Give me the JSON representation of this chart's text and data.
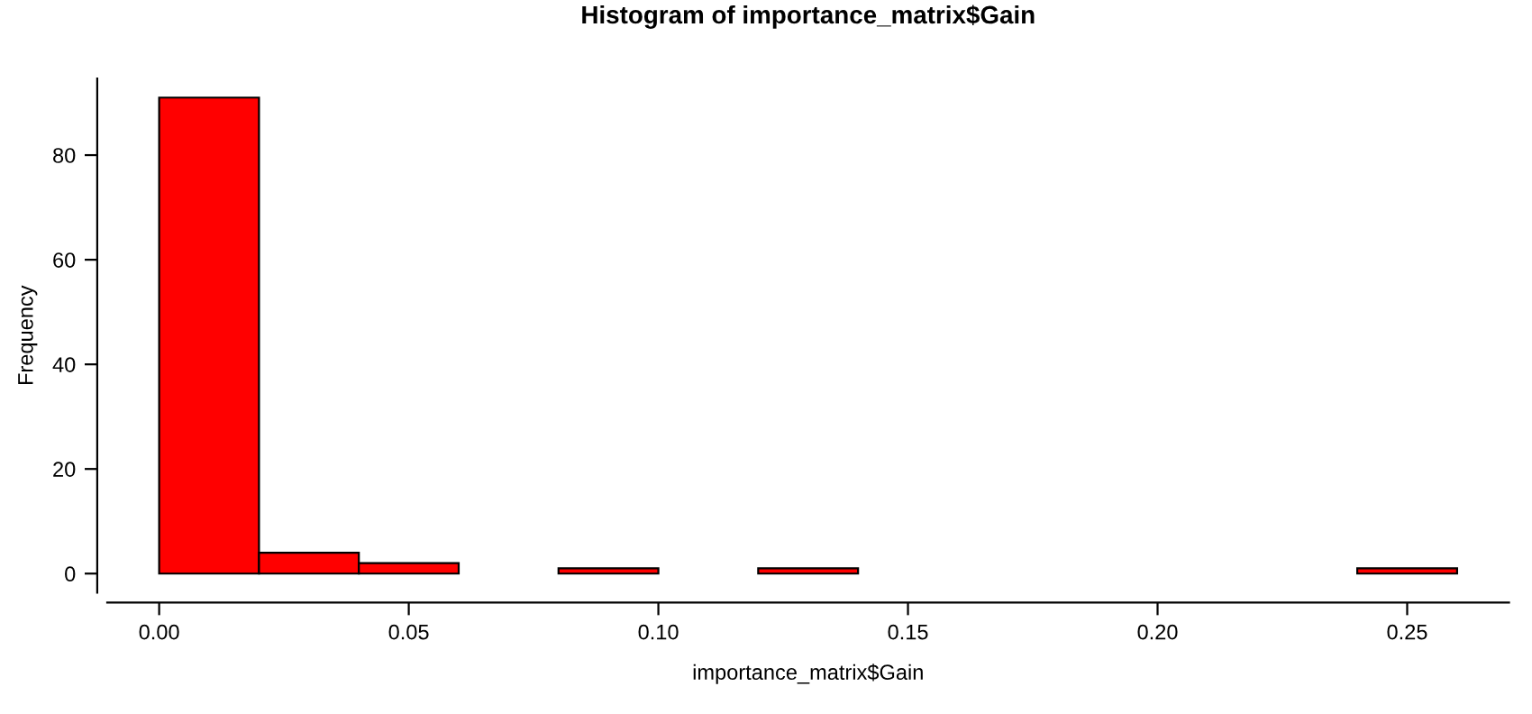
{
  "chart_data": {
    "type": "histogram",
    "title": "Histogram of importance_matrix$Gain",
    "xlabel": "importance_matrix$Gain",
    "ylabel": "Frequency",
    "bins": [
      0,
      0.02,
      0.04,
      0.06,
      0.08,
      0.1,
      0.12,
      0.14,
      0.16,
      0.18,
      0.2,
      0.22,
      0.24,
      0.26
    ],
    "values": [
      91,
      4,
      2,
      0,
      1,
      0,
      1,
      0,
      0,
      0,
      0,
      0,
      1
    ],
    "color": "#ff0000",
    "xlim": [
      -0.0104,
      0.2704
    ],
    "ylim": [
      -3.64,
      94.64
    ],
    "xticks": [
      {
        "value": 0,
        "label": "0.00"
      },
      {
        "value": 0.05,
        "label": "0.05"
      },
      {
        "value": 0.1,
        "label": "0.10"
      },
      {
        "value": 0.15,
        "label": "0.15"
      },
      {
        "value": 0.2,
        "label": "0.20"
      },
      {
        "value": 0.25,
        "label": "0.25"
      }
    ],
    "yticks": [
      0,
      20,
      40,
      60,
      80
    ],
    "grid": false
  }
}
